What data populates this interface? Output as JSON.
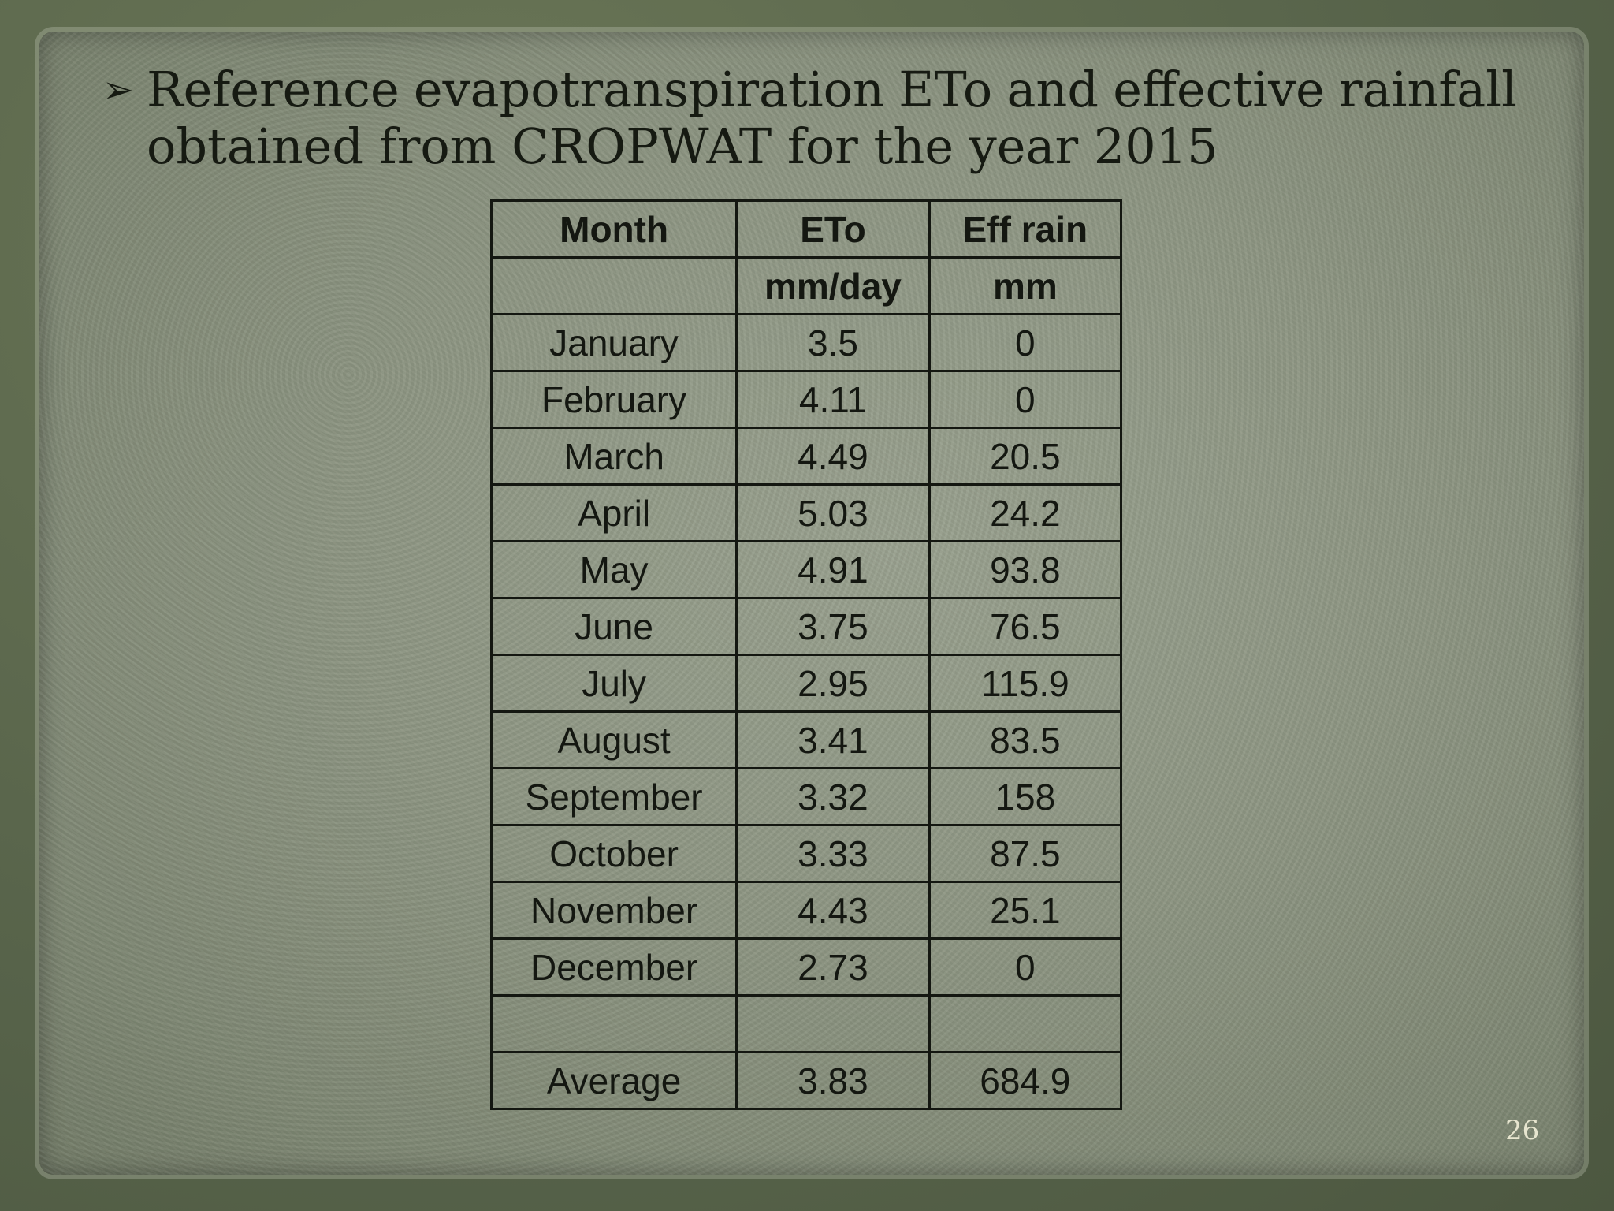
{
  "slide": {
    "heading_line1_words": [
      "Reference",
      "evapotranspiration",
      "ETo",
      "and",
      "effective",
      "rainfall"
    ],
    "heading_line2": "obtained from CROPWAT for the year 2015",
    "bullet_glyph": "➢",
    "page_number": "26"
  },
  "table": {
    "headers": {
      "month": "Month",
      "eto": "ETo",
      "rain": "Eff rain"
    },
    "units": {
      "month": "",
      "eto": "mm/day",
      "rain": "mm"
    },
    "rows": [
      {
        "month": "January",
        "eto": "3.5",
        "rain": "0"
      },
      {
        "month": "February",
        "eto": "4.11",
        "rain": "0"
      },
      {
        "month": "March",
        "eto": "4.49",
        "rain": "20.5"
      },
      {
        "month": "April",
        "eto": "5.03",
        "rain": "24.2"
      },
      {
        "month": "May",
        "eto": "4.91",
        "rain": "93.8"
      },
      {
        "month": "June",
        "eto": "3.75",
        "rain": "76.5"
      },
      {
        "month": "July",
        "eto": "2.95",
        "rain": "115.9"
      },
      {
        "month": "August",
        "eto": "3.41",
        "rain": "83.5"
      },
      {
        "month": "September",
        "eto": "3.32",
        "rain": "158"
      },
      {
        "month": "October",
        "eto": "3.33",
        "rain": "87.5"
      },
      {
        "month": "November",
        "eto": "4.43",
        "rain": "25.1"
      },
      {
        "month": "December",
        "eto": "2.73",
        "rain": "0"
      }
    ],
    "blank_row": {
      "month": "",
      "eto": "",
      "rain": ""
    },
    "average": {
      "month": "Average",
      "eto": "3.83",
      "rain": "684.9"
    }
  }
}
